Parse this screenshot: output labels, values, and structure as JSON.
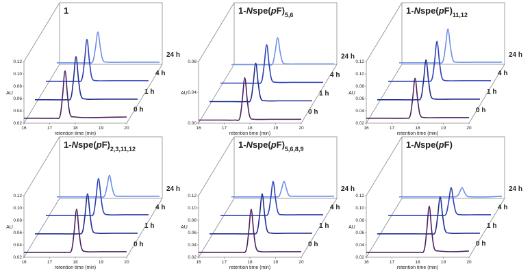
{
  "chart_data": [
    {
      "type": "line",
      "title": [
        "1"
      ],
      "xlabel": "retention time (min)",
      "ylabel": "AU",
      "xlim": [
        16,
        20
      ],
      "xticks": [
        16,
        17,
        18,
        19,
        20
      ],
      "ylim": [
        0.02,
        0.12
      ],
      "yticks": [
        0.02,
        0.04,
        0.06,
        0.08,
        {
          "value": 0.1,
          "label": "0.10"
        },
        0.12
      ],
      "x": [
        16,
        16.6,
        17.2,
        17.4,
        17.5,
        17.6,
        17.7,
        17.8,
        18,
        18.6,
        20
      ],
      "series": [
        {
          "name": "0 h",
          "color": "#4a1f5c",
          "values": [
            0.028,
            0.028,
            0.028,
            0.031,
            0.063,
            0.105,
            0.063,
            0.034,
            0.03,
            0.029,
            0.03
          ]
        },
        {
          "name": "1 h",
          "color": "#1c2d8f",
          "values": [
            0.028,
            0.028,
            0.028,
            0.031,
            0.06,
            0.098,
            0.06,
            0.034,
            0.029,
            0.029,
            0.029
          ]
        },
        {
          "name": "4 h",
          "color": "#2b3fb8",
          "values": [
            0.028,
            0.028,
            0.028,
            0.031,
            0.059,
            0.096,
            0.059,
            0.033,
            0.029,
            0.029,
            0.029
          ]
        },
        {
          "name": "24 h",
          "color": "#6c8fe8",
          "values": [
            0.028,
            0.028,
            0.028,
            0.03,
            0.051,
            0.078,
            0.051,
            0.032,
            0.029,
            0.029,
            0.029
          ]
        }
      ]
    },
    {
      "type": "line",
      "title": [
        "1-",
        "N",
        "spe(",
        "p",
        "F)"
      ],
      "title_subscript": "5,6",
      "xlabel": "retention time (min)",
      "ylabel": "AU",
      "xlim": [
        16,
        20
      ],
      "xticks": [
        16,
        17,
        18,
        19,
        20
      ],
      "ylim": [
        0,
        0.08
      ],
      "yticks": [
        {
          "value": 0,
          "label": "0.00"
        },
        0.04,
        0.08
      ],
      "x": [
        16,
        16.8,
        17.4,
        17.6,
        17.7,
        17.8,
        17.9,
        18,
        18.2,
        18.8,
        20
      ],
      "series": [
        {
          "name": "0 h",
          "color": "#4a1f5c",
          "values": [
            0.004,
            0.004,
            0.004,
            0.006,
            0.029,
            0.059,
            0.029,
            0.008,
            0.005,
            0.005,
            0.005
          ]
        },
        {
          "name": "1 h",
          "color": "#1c2d8f",
          "values": [
            0.004,
            0.004,
            0.004,
            0.006,
            0.027,
            0.054,
            0.027,
            0.008,
            0.005,
            0.005,
            0.005
          ]
        },
        {
          "name": "4 h",
          "color": "#2b3fb8",
          "values": [
            0.004,
            0.004,
            0.004,
            0.006,
            0.027,
            0.054,
            0.027,
            0.008,
            0.005,
            0.005,
            0.005
          ]
        },
        {
          "name": "24 h",
          "color": "#6c8fe8",
          "values": [
            0.004,
            0.004,
            0.004,
            0.005,
            0.02,
            0.039,
            0.02,
            0.007,
            0.005,
            0.005,
            0.005
          ]
        }
      ]
    },
    {
      "type": "line",
      "title": [
        "1-",
        "N",
        "spe(",
        "p",
        "F)"
      ],
      "title_subscript": "11,12",
      "xlabel": "retention time (min)",
      "ylabel": "AU",
      "xlim": [
        16,
        20
      ],
      "xticks": [
        16,
        17,
        18,
        19,
        20
      ],
      "ylim": [
        0.02,
        0.12
      ],
      "yticks": [
        0.02,
        0.04,
        0.06,
        0.08,
        {
          "value": 0.1,
          "label": "0.10"
        },
        0.12
      ],
      "x": [
        16,
        16.9,
        17.5,
        17.7,
        17.8,
        17.9,
        18,
        18.1,
        18.3,
        18.9,
        20
      ],
      "series": [
        {
          "name": "0 h",
          "color": "#4a1f5c",
          "values": [
            0.028,
            0.028,
            0.028,
            0.031,
            0.058,
            0.093,
            0.058,
            0.033,
            0.029,
            0.029,
            0.029
          ]
        },
        {
          "name": "1 h",
          "color": "#1c2d8f",
          "values": [
            0.028,
            0.028,
            0.028,
            0.031,
            0.058,
            0.093,
            0.058,
            0.033,
            0.029,
            0.029,
            0.029
          ]
        },
        {
          "name": "4 h",
          "color": "#2b3fb8",
          "values": [
            0.028,
            0.028,
            0.028,
            0.031,
            0.058,
            0.093,
            0.058,
            0.033,
            0.029,
            0.029,
            0.029
          ]
        },
        {
          "name": "24 h",
          "color": "#6c8fe8",
          "values": [
            0.028,
            0.028,
            0.028,
            0.03,
            0.053,
            0.083,
            0.053,
            0.032,
            0.029,
            0.029,
            0.029
          ]
        }
      ]
    },
    {
      "type": "line",
      "title": [
        "1-",
        "N",
        "spe(",
        "p",
        "F)"
      ],
      "title_subscript": "2,3,11,12",
      "xlabel": "retention time (min)",
      "ylabel": "AU",
      "xlim": [
        16,
        20
      ],
      "xticks": [
        16,
        17,
        18,
        19,
        20
      ],
      "ylim": [
        0.02,
        0.12
      ],
      "yticks": [
        0.02,
        0.04,
        0.06,
        0.08,
        {
          "value": 0.1,
          "label": "0.10"
        },
        0.12
      ],
      "x": [
        16,
        17.05,
        17.65,
        17.85,
        17.95,
        18.05,
        18.15,
        18.25,
        18.45,
        19.05,
        20
      ],
      "series": [
        {
          "name": "0 h",
          "color": "#4a1f5c",
          "values": [
            0.028,
            0.028,
            0.028,
            0.031,
            0.06,
            0.098,
            0.06,
            0.034,
            0.029,
            0.029,
            0.029
          ]
        },
        {
          "name": "1 h",
          "color": "#1c2d8f",
          "values": [
            0.028,
            0.028,
            0.028,
            0.031,
            0.058,
            0.093,
            0.058,
            0.033,
            0.029,
            0.029,
            0.029
          ]
        },
        {
          "name": "4 h",
          "color": "#2b3fb8",
          "values": [
            0.028,
            0.028,
            0.028,
            0.03,
            0.056,
            0.088,
            0.056,
            0.033,
            0.029,
            0.029,
            0.029
          ]
        },
        {
          "name": "24 h",
          "color": "#6c8fe8",
          "values": [
            0.028,
            0.028,
            0.028,
            0.029,
            0.044,
            0.063,
            0.044,
            0.031,
            0.029,
            0.029,
            0.029
          ]
        }
      ]
    },
    {
      "type": "line",
      "title": [
        "1-",
        "N",
        "spe(",
        "p",
        "F)"
      ],
      "title_subscript": "5,6,8,9",
      "xlabel": "retention time (min)",
      "ylabel": "AU",
      "xlim": [
        16,
        20
      ],
      "xticks": [
        16,
        17,
        18,
        19,
        20
      ],
      "ylim": [
        0.02,
        0.12
      ],
      "yticks": [
        0.02,
        0.04,
        0.06,
        0.08,
        {
          "value": 0.1,
          "label": "0.10"
        },
        0.12
      ],
      "x": [
        16,
        17.05,
        17.65,
        17.85,
        17.95,
        18.05,
        18.15,
        18.25,
        18.45,
        19.05,
        20
      ],
      "series": [
        {
          "name": "0 h",
          "color": "#4a1f5c",
          "values": [
            0.028,
            0.028,
            0.028,
            0.031,
            0.06,
            0.098,
            0.06,
            0.034,
            0.029,
            0.029,
            0.029
          ]
        },
        {
          "name": "1 h",
          "color": "#1c2d8f",
          "values": [
            0.028,
            0.028,
            0.028,
            0.031,
            0.058,
            0.093,
            0.058,
            0.033,
            0.029,
            0.029,
            0.029
          ]
        },
        {
          "name": "4 h",
          "color": "#2b3fb8",
          "values": [
            0.028,
            0.028,
            0.028,
            0.03,
            0.053,
            0.083,
            0.053,
            0.032,
            0.029,
            0.029,
            0.029
          ]
        },
        {
          "name": "24 h",
          "color": "#6c8fe8",
          "values": [
            0.028,
            0.028,
            0.028,
            0.029,
            0.04,
            0.053,
            0.04,
            0.03,
            0.029,
            0.029,
            0.029
          ]
        }
      ]
    },
    {
      "type": "line",
      "title": [
        "1-",
        "N",
        "spe(",
        "p",
        "F)"
      ],
      "xlabel": "retention time (min)",
      "ylabel": "AU",
      "xlim": [
        16,
        20
      ],
      "xticks": [
        16,
        17,
        18,
        19,
        20
      ],
      "ylim": [
        0.02,
        0.12
      ],
      "yticks": [
        0.02,
        0.04,
        0.06,
        0.08,
        {
          "value": 0.1,
          "label": "0.10"
        },
        0.12
      ],
      "x": [
        16,
        17.45,
        18.05,
        18.25,
        18.35,
        18.45,
        18.55,
        18.65,
        18.85,
        19.45,
        20
      ],
      "series": [
        {
          "name": "0 h",
          "color": "#4a1f5c",
          "values": [
            0.028,
            0.028,
            0.028,
            0.031,
            0.062,
            0.103,
            0.062,
            0.034,
            0.03,
            0.029,
            0.03
          ]
        },
        {
          "name": "1 h",
          "color": "#1c2d8f",
          "values": [
            0.028,
            0.028,
            0.028,
            0.03,
            0.056,
            0.088,
            0.056,
            0.033,
            0.029,
            0.029,
            0.029
          ]
        },
        {
          "name": "4 h",
          "color": "#2b3fb8",
          "values": [
            0.028,
            0.028,
            0.028,
            0.03,
            0.049,
            0.073,
            0.049,
            0.032,
            0.029,
            0.029,
            0.029
          ]
        },
        {
          "name": "24 h",
          "color": "#6c8fe8",
          "values": [
            0.028,
            0.028,
            0.028,
            0.029,
            0.035,
            0.043,
            0.035,
            0.029,
            0.028,
            0.028,
            0.029
          ]
        }
      ]
    }
  ]
}
